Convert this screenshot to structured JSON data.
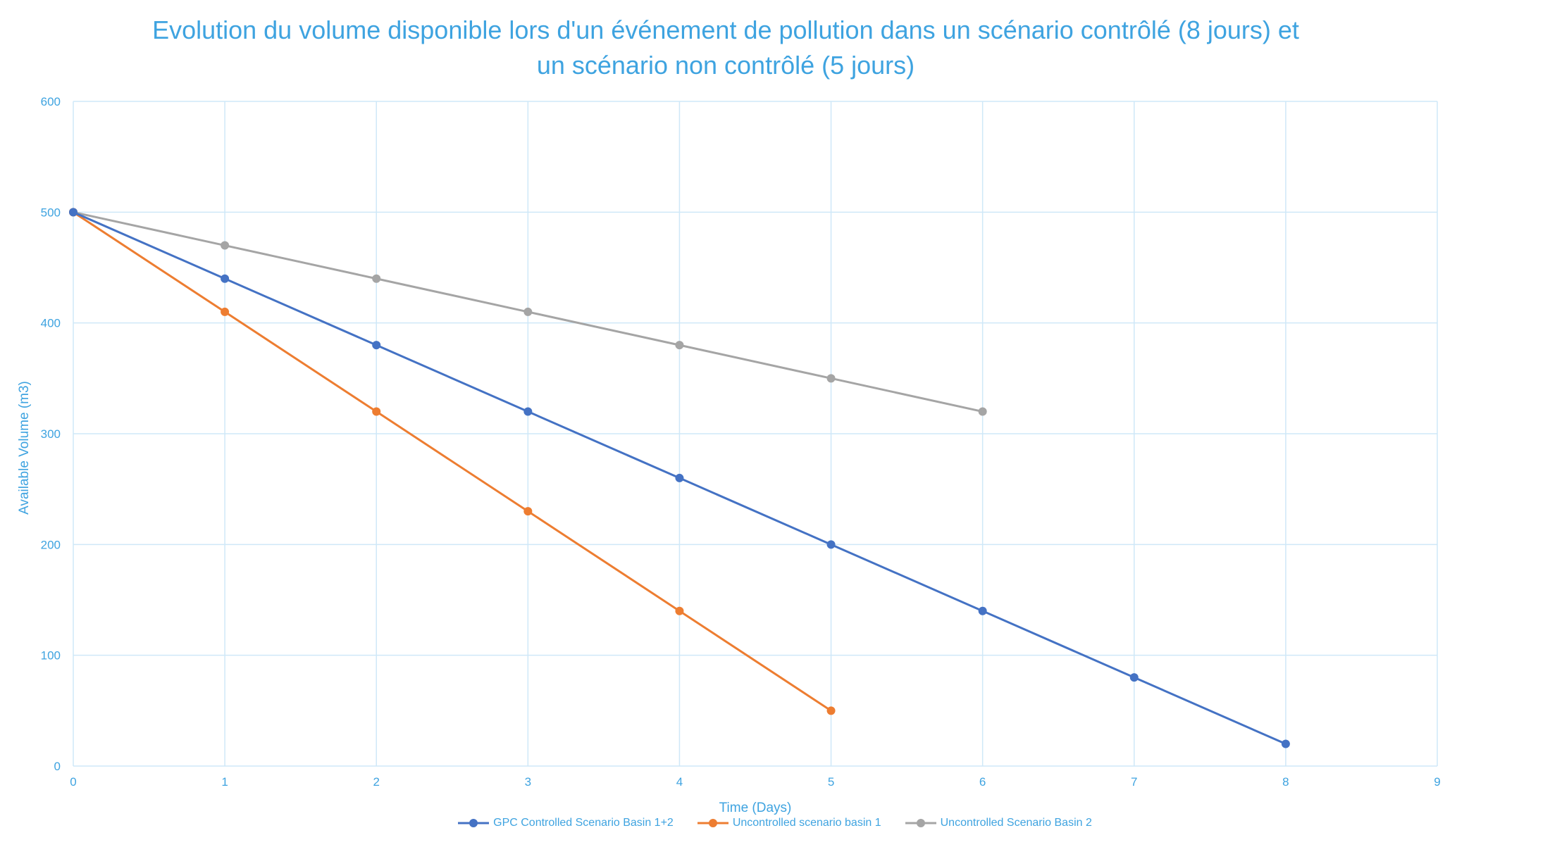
{
  "chart_data": {
    "type": "line",
    "title": "Evolution du volume disponible lors d'un événement de pollution dans un scénario contrôlé (8 jours) et un scénario non contrôlé (5 jours)",
    "xlabel": "Time (Days)",
    "ylabel": "Available Volume (m3)",
    "xlim": [
      0,
      9
    ],
    "ylim": [
      0,
      600
    ],
    "x_ticks": [
      0,
      1,
      2,
      3,
      4,
      5,
      6,
      7,
      8,
      9
    ],
    "y_ticks": [
      0,
      100,
      200,
      300,
      400,
      500,
      600
    ],
    "grid": true,
    "legend_position": "bottom",
    "series": [
      {
        "name": "GPC Controlled Scenario Basin 1+2",
        "color": "#4472c4",
        "x": [
          0,
          1,
          2,
          3,
          4,
          5,
          6,
          7,
          8
        ],
        "values": [
          500,
          440,
          380,
          320,
          260,
          200,
          140,
          80,
          20
        ]
      },
      {
        "name": "Uncontrolled scenario basin 1",
        "color": "#ed7d31",
        "x": [
          0,
          1,
          2,
          3,
          4,
          5
        ],
        "values": [
          500,
          410,
          320,
          230,
          140,
          50
        ]
      },
      {
        "name": "Uncontrolled Scenario Basin 2",
        "color": "#a5a5a5",
        "x": [
          0,
          1,
          2,
          3,
          4,
          5,
          6
        ],
        "values": [
          500,
          470,
          440,
          410,
          380,
          350,
          320
        ]
      }
    ],
    "colors": {
      "text": "#3ea3e0",
      "grid": "#cfe8f8"
    }
  }
}
